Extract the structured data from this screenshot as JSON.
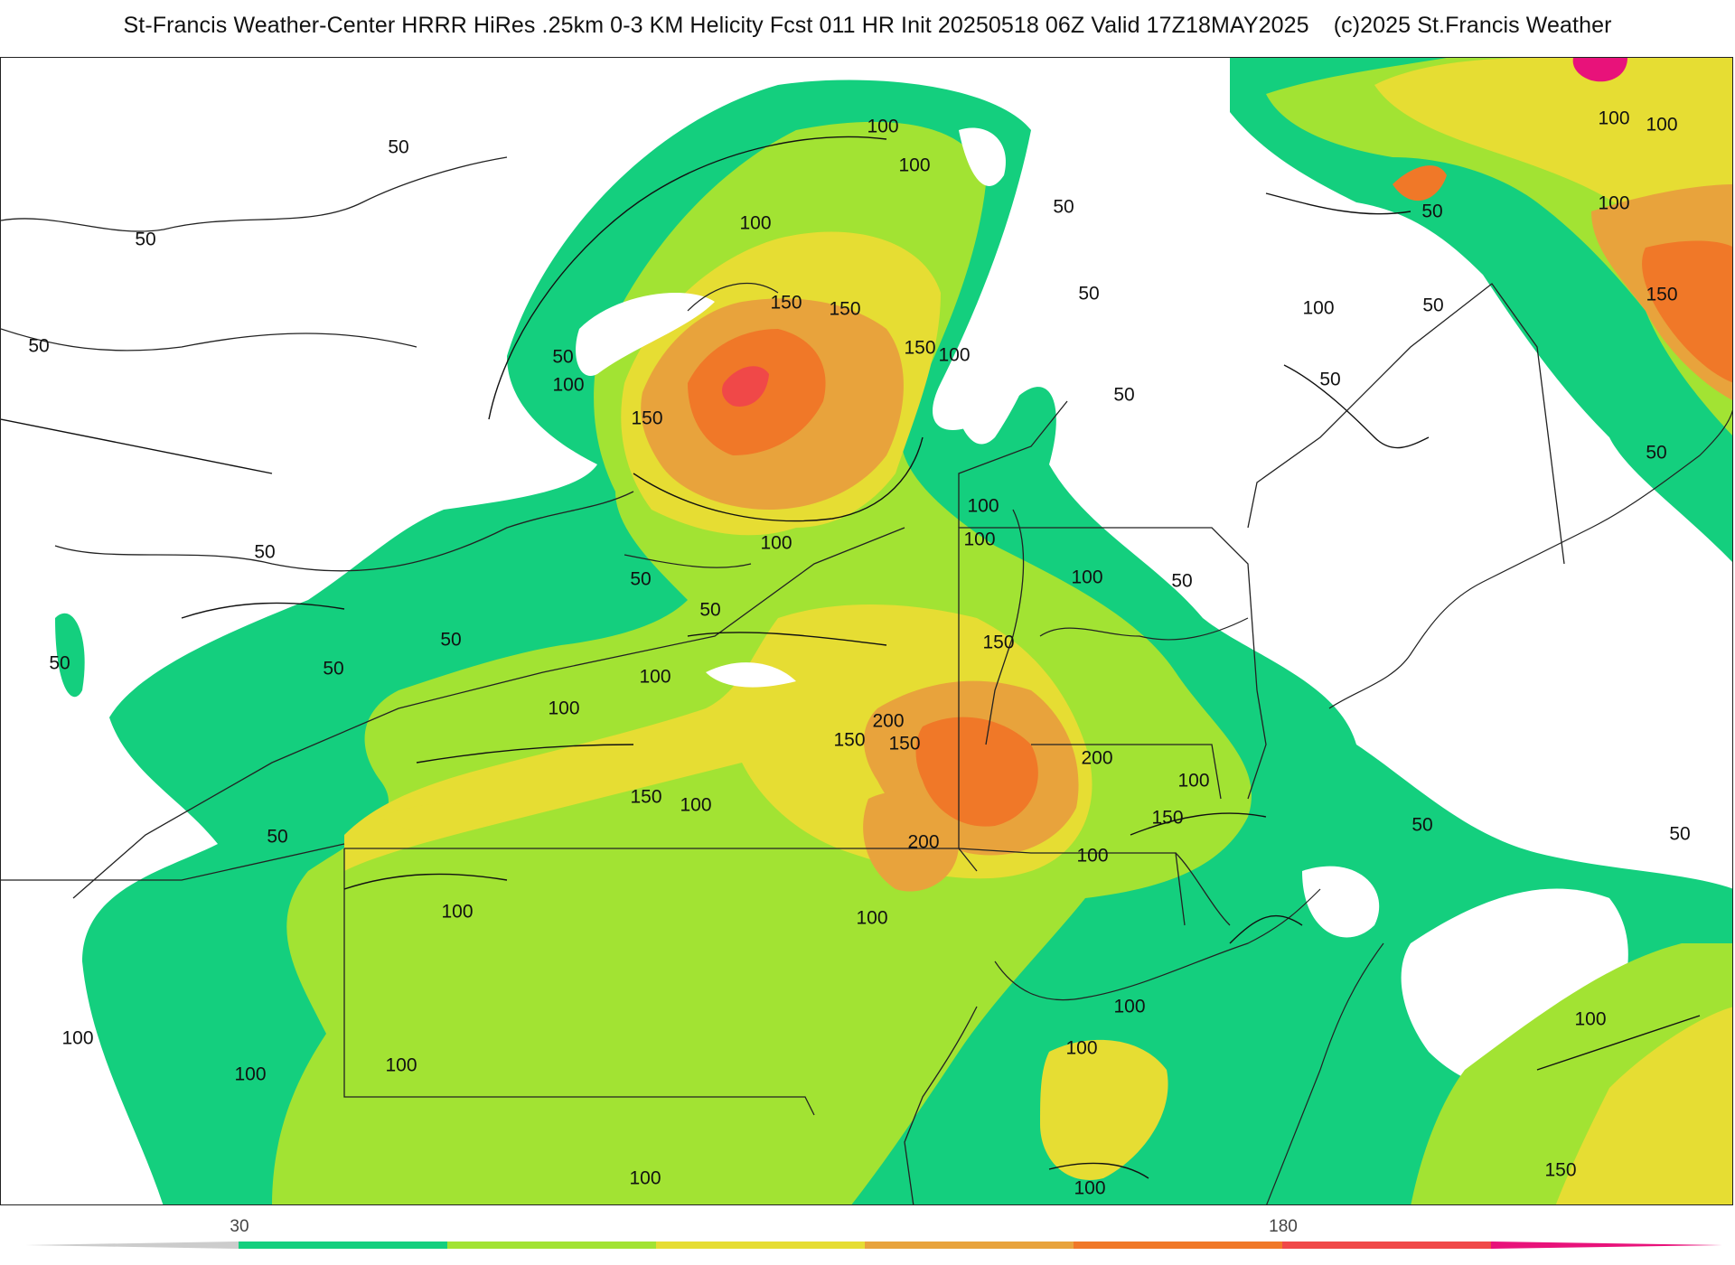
{
  "title": {
    "main": "St-Francis Weather-Center HRRR HiRes .25km 0-3 KM Helicity Fcst 011 HR Init 20250518 06Z  Valid 17Z18MAY2025",
    "copyright": "(c)2025 St.Francis Weather"
  },
  "colors": {
    "c30": "#14cf7e",
    "c60": "#a2e333",
    "c90": "#e6dd33",
    "c120": "#e8a33c",
    "c150": "#f07828",
    "c180": "#f04848",
    "c210": "#e8127a",
    "boundary": "#222222",
    "county": "#9a9a9a"
  },
  "colorbar": {
    "tick_labels": [
      "30",
      "180"
    ],
    "bins": [
      30,
      60,
      90,
      120,
      150,
      180,
      210
    ]
  },
  "contour_labels": [
    {
      "text": "50"
    },
    {
      "text": "50"
    },
    {
      "text": "50"
    },
    {
      "text": "50"
    },
    {
      "text": "50"
    },
    {
      "text": "50"
    },
    {
      "text": "50"
    },
    {
      "text": "50"
    },
    {
      "text": "50"
    },
    {
      "text": "50"
    },
    {
      "text": "50"
    },
    {
      "text": "50"
    },
    {
      "text": "50"
    },
    {
      "text": "50"
    },
    {
      "text": "50"
    },
    {
      "text": "50"
    },
    {
      "text": "50"
    },
    {
      "text": "50"
    },
    {
      "text": "50"
    },
    {
      "text": "50"
    },
    {
      "text": "50"
    },
    {
      "text": "100"
    },
    {
      "text": "100"
    },
    {
      "text": "100"
    },
    {
      "text": "100"
    },
    {
      "text": "100"
    },
    {
      "text": "100"
    },
    {
      "text": "100"
    },
    {
      "text": "100"
    },
    {
      "text": "100"
    },
    {
      "text": "100"
    },
    {
      "text": "100"
    },
    {
      "text": "100"
    },
    {
      "text": "100"
    },
    {
      "text": "100"
    },
    {
      "text": "100"
    },
    {
      "text": "100"
    },
    {
      "text": "100"
    },
    {
      "text": "100"
    },
    {
      "text": "100"
    },
    {
      "text": "100"
    },
    {
      "text": "100"
    },
    {
      "text": "100"
    },
    {
      "text": "100"
    },
    {
      "text": "100"
    },
    {
      "text": "100"
    },
    {
      "text": "100"
    },
    {
      "text": "100"
    },
    {
      "text": "100"
    },
    {
      "text": "150"
    },
    {
      "text": "150"
    },
    {
      "text": "150"
    },
    {
      "text": "150"
    },
    {
      "text": "150"
    },
    {
      "text": "150"
    },
    {
      "text": "150"
    },
    {
      "text": "150"
    },
    {
      "text": "150"
    },
    {
      "text": "150"
    },
    {
      "text": "150"
    },
    {
      "text": "200"
    },
    {
      "text": "200"
    },
    {
      "text": "200"
    }
  ]
}
